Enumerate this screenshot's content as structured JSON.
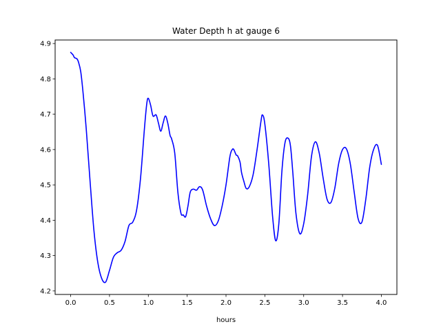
{
  "chart_data": {
    "type": "line",
    "title": "Water Depth h at gauge 6",
    "xlabel": "hours",
    "ylabel": "",
    "xlim": [
      -0.2,
      4.2
    ],
    "ylim": [
      4.19,
      4.91
    ],
    "xticks": [
      "0.0",
      "0.5",
      "1.0",
      "1.5",
      "2.0",
      "2.5",
      "3.0",
      "3.5",
      "4.0"
    ],
    "yticks": [
      "4.2",
      "4.3",
      "4.4",
      "4.5",
      "4.6",
      "4.7",
      "4.8",
      "4.9"
    ],
    "grid": false,
    "legend": "none",
    "series": [
      {
        "color": "#0000ff",
        "x": [
          0.0,
          0.03,
          0.05,
          0.08,
          0.1,
          0.13,
          0.16,
          0.2,
          0.25,
          0.3,
          0.35,
          0.4,
          0.45,
          0.5,
          0.55,
          0.6,
          0.65,
          0.7,
          0.75,
          0.8,
          0.85,
          0.9,
          0.95,
          0.98,
          1.0,
          1.03,
          1.06,
          1.1,
          1.13,
          1.16,
          1.19,
          1.22,
          1.25,
          1.28,
          1.3,
          1.34,
          1.38,
          1.42,
          1.45,
          1.48,
          1.51,
          1.54,
          1.58,
          1.62,
          1.66,
          1.7,
          1.75,
          1.8,
          1.85,
          1.9,
          1.95,
          2.0,
          2.05,
          2.08,
          2.1,
          2.13,
          2.15,
          2.18,
          2.2,
          2.23,
          2.26,
          2.3,
          2.35,
          2.4,
          2.45,
          2.47,
          2.5,
          2.55,
          2.6,
          2.64,
          2.68,
          2.72,
          2.76,
          2.8,
          2.83,
          2.86,
          2.9,
          2.95,
          3.0,
          3.05,
          3.1,
          3.15,
          3.2,
          3.25,
          3.3,
          3.35,
          3.4,
          3.45,
          3.5,
          3.55,
          3.6,
          3.65,
          3.7,
          3.75,
          3.8,
          3.85,
          3.9,
          3.95,
          4.0
        ],
        "y": [
          4.875,
          4.868,
          4.86,
          4.857,
          4.848,
          4.82,
          4.76,
          4.66,
          4.51,
          4.37,
          4.28,
          4.235,
          4.225,
          4.258,
          4.295,
          4.308,
          4.315,
          4.34,
          4.385,
          4.395,
          4.43,
          4.52,
          4.66,
          4.73,
          4.745,
          4.725,
          4.695,
          4.698,
          4.675,
          4.652,
          4.675,
          4.695,
          4.675,
          4.64,
          4.63,
          4.59,
          4.48,
          4.42,
          4.415,
          4.41,
          4.44,
          4.48,
          4.488,
          4.485,
          4.495,
          4.485,
          4.44,
          4.405,
          4.385,
          4.398,
          4.44,
          4.5,
          4.58,
          4.6,
          4.6,
          4.585,
          4.582,
          4.565,
          4.535,
          4.51,
          4.49,
          4.495,
          4.53,
          4.6,
          4.68,
          4.698,
          4.672,
          4.56,
          4.41,
          4.342,
          4.39,
          4.54,
          4.62,
          4.632,
          4.61,
          4.535,
          4.42,
          4.362,
          4.39,
          4.47,
          4.58,
          4.622,
          4.59,
          4.52,
          4.46,
          4.45,
          4.49,
          4.56,
          4.6,
          4.602,
          4.56,
          4.48,
          4.405,
          4.395,
          4.46,
          4.55,
          4.6,
          4.612,
          4.558
        ]
      }
    ]
  }
}
